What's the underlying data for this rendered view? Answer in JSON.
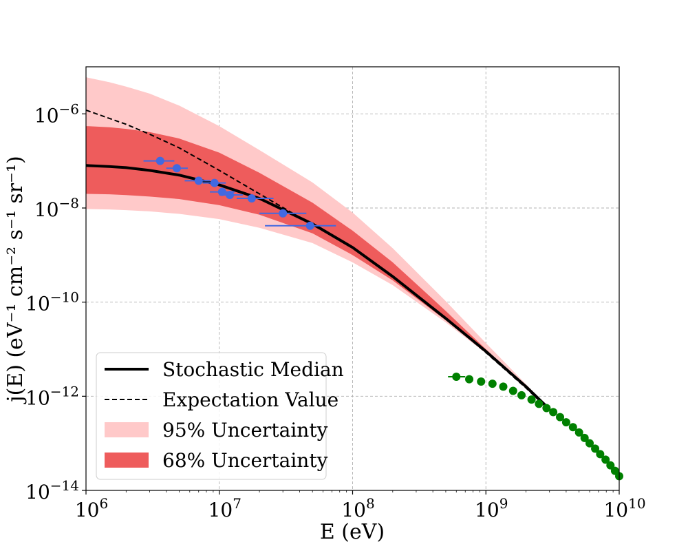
{
  "chart_data": {
    "type": "line",
    "title": "",
    "xlabel": "E (eV)",
    "ylabel": "j(E) (eV⁻¹ cm⁻² s⁻¹ sr⁻¹)",
    "xscale": "log",
    "yscale": "log",
    "xlim": [
      1000000.0,
      10000000000.0
    ],
    "ylim": [
      1e-14,
      1e-05
    ],
    "grid": true,
    "legend_position": "lower-left",
    "x_ticks": [
      {
        "value": 1000000.0,
        "label": "10^6",
        "base": "10",
        "exp": "6"
      },
      {
        "value": 10000000.0,
        "label": "10^7",
        "base": "10",
        "exp": "7"
      },
      {
        "value": 100000000.0,
        "label": "10^8",
        "base": "10",
        "exp": "8"
      },
      {
        "value": 1000000000.0,
        "label": "10^9",
        "base": "10",
        "exp": "9"
      },
      {
        "value": 10000000000.0,
        "label": "10^10",
        "base": "10",
        "exp": "10"
      }
    ],
    "y_ticks": [
      {
        "value": 1e-14,
        "label": "10^-14",
        "base": "10",
        "exp": "−14"
      },
      {
        "value": 1e-12,
        "label": "10^-12",
        "base": "10",
        "exp": "−12"
      },
      {
        "value": 1e-10,
        "label": "10^-10",
        "base": "10",
        "exp": "−10"
      },
      {
        "value": 1e-08,
        "label": "10^-8",
        "base": "10",
        "exp": "−8"
      },
      {
        "value": 1e-06,
        "label": "10^-6",
        "base": "10",
        "exp": "−6"
      }
    ],
    "series": [
      {
        "name": "95% Uncertainty",
        "kind": "band",
        "color": "#ffc9c9",
        "x": [
          1000000.0,
          1500000.0,
          2000000.0,
          3000000.0,
          5000000.0,
          10000000.0,
          20000000.0,
          50000000.0,
          100000000.0,
          200000000.0,
          500000000.0,
          1000000000.0,
          2000000000.0,
          3000000000.0
        ],
        "upper": [
          6e-06,
          4.7e-06,
          3.8e-06,
          2.7e-06,
          1.5e-06,
          5.5e-07,
          1.7e-07,
          3.5e-08,
          8e-09,
          1.4e-09,
          1.05e-10,
          1.35e-11,
          1.8e-12,
          5.5e-13
        ],
        "lower": [
          9.5e-09,
          9.3e-09,
          9e-09,
          8.5e-09,
          7.5e-09,
          5.8e-09,
          3.8e-09,
          1.8e-09,
          7e-10,
          2.3e-10,
          3.7e-11,
          8.2e-12,
          1.45e-12,
          4.7e-13
        ]
      },
      {
        "name": "68% Uncertainty",
        "kind": "band",
        "color": "#ee5c5c",
        "x": [
          1000000.0,
          1500000.0,
          2000000.0,
          3000000.0,
          5000000.0,
          10000000.0,
          20000000.0,
          50000000.0,
          100000000.0,
          200000000.0,
          500000000.0,
          1000000000.0,
          2000000000.0,
          3000000000.0
        ],
        "upper": [
          5.5e-07,
          5.2e-07,
          4.8e-07,
          4.1e-07,
          3e-07,
          1.5e-07,
          5.6e-08,
          1.3e-08,
          3.3e-09,
          7e-10,
          6.5e-11,
          1e-11,
          1.6e-12,
          5.2e-13
        ],
        "lower": [
          2e-08,
          1.95e-08,
          1.88e-08,
          1.75e-08,
          1.55e-08,
          1.15e-08,
          7.2e-09,
          2.9e-09,
          1e-09,
          2.9e-10,
          4.1e-11,
          8.5e-12,
          1.5e-12,
          4.9e-13
        ]
      },
      {
        "name": "Expectation Value",
        "kind": "line",
        "style": "dashed",
        "color": "#000000",
        "x": [
          1000000.0,
          1500000.0,
          2000000.0,
          3000000.0,
          5000000.0,
          10000000.0,
          20000000.0,
          50000000.0,
          100000000.0,
          200000000.0,
          500000000.0,
          1000000000.0,
          2000000000.0,
          3000000000.0
        ],
        "y": [
          1.2e-06,
          8e-07,
          6e-07,
          3.7e-07,
          1.9e-07,
          6.3e-08,
          2e-08,
          4.4e-09,
          1.45e-09,
          3.6e-10,
          4.5e-11,
          8.5e-12,
          1.5e-12,
          5e-13
        ]
      },
      {
        "name": "Stochastic Median",
        "kind": "line",
        "style": "solid",
        "color": "#000000",
        "x": [
          1000000.0,
          1500000.0,
          2000000.0,
          3000000.0,
          5000000.0,
          10000000.0,
          20000000.0,
          50000000.0,
          100000000.0,
          200000000.0,
          500000000.0,
          1000000000.0,
          2000000000.0,
          3000000000.0
        ],
        "y": [
          8e-08,
          7.6e-08,
          7.2e-08,
          6.3e-08,
          5e-08,
          3.1e-08,
          1.6e-08,
          4.6e-09,
          1.45e-09,
          3.5e-10,
          4.5e-11,
          9e-12,
          1.6e-12,
          5.3e-13
        ]
      },
      {
        "name": "Blue data points",
        "kind": "points",
        "color": "#4169e1",
        "points": [
          {
            "x": 3600000.0,
            "y": 1e-07,
            "xerr": [
              2700000.0,
              4600000.0
            ]
          },
          {
            "x": 4800000.0,
            "y": 7e-08,
            "xerr": [
              4000000.0,
              5800000.0
            ]
          },
          {
            "x": 7000000.0,
            "y": 3.8e-08,
            "xerr": [
              5500000.0,
              8500000.0
            ]
          },
          {
            "x": 9200000.0,
            "y": 3.4e-08,
            "xerr": [
              7500000.0,
              11200000.0
            ]
          },
          {
            "x": 10500000.0,
            "y": 2.2e-08,
            "xerr": [
              8500000.0,
              13000000.0
            ]
          },
          {
            "x": 12000000.0,
            "y": 1.9e-08,
            "xerr": [
              10000000.0,
              15000000.0
            ]
          },
          {
            "x": 17500000.0,
            "y": 1.6e-08,
            "xerr": [
              13500000.0,
              25500000.0
            ]
          },
          {
            "x": 30000000.0,
            "y": 7.7e-09,
            "xerr": [
              20000000.0,
              45000000.0
            ]
          },
          {
            "x": 48000000.0,
            "y": 4.2e-09,
            "xerr": [
              22000000.0,
              75000000.0
            ]
          }
        ]
      },
      {
        "name": "Green data points",
        "kind": "points",
        "color": "#008000",
        "points": [
          {
            "x": 600000000.0,
            "y": 2.6e-12,
            "xerr": [
              520000000.0,
              700000000.0
            ]
          },
          {
            "x": 750000000.0,
            "y": 2.3e-12
          },
          {
            "x": 920000000.0,
            "y": 2.05e-12
          },
          {
            "x": 1120000000.0,
            "y": 1.85e-12
          },
          {
            "x": 1350000000.0,
            "y": 1.6e-12
          },
          {
            "x": 1600000000.0,
            "y": 1.3e-12
          },
          {
            "x": 1850000000.0,
            "y": 1.05e-12
          },
          {
            "x": 2200000000.0,
            "y": 8.5e-13
          },
          {
            "x": 2500000000.0,
            "y": 6.9e-13
          },
          {
            "x": 2850000000.0,
            "y": 5.6e-13
          },
          {
            "x": 3200000000.0,
            "y": 4.6e-13
          },
          {
            "x": 3600000000.0,
            "y": 3.6e-13
          },
          {
            "x": 4000000000.0,
            "y": 2.8e-13
          },
          {
            "x": 4500000000.0,
            "y": 2.2e-13
          },
          {
            "x": 5000000000.0,
            "y": 1.7e-13
          },
          {
            "x": 5500000000.0,
            "y": 1.3e-13
          },
          {
            "x": 6000000000.0,
            "y": 1e-13
          },
          {
            "x": 6600000000.0,
            "y": 7.7e-14
          },
          {
            "x": 7200000000.0,
            "y": 5.9e-14
          },
          {
            "x": 7900000000.0,
            "y": 4.5e-14
          },
          {
            "x": 8600000000.0,
            "y": 3.4e-14
          },
          {
            "x": 9300000000.0,
            "y": 2.6e-14
          },
          {
            "x": 10000000000.0,
            "y": 2e-14
          }
        ]
      }
    ],
    "legend": [
      {
        "label": "Stochastic Median",
        "kind": "solid-line",
        "color": "#000000"
      },
      {
        "label": "Expectation Value",
        "kind": "dashed-line",
        "color": "#000000"
      },
      {
        "label": "95% Uncertainty",
        "kind": "patch",
        "color": "#ffc9c9"
      },
      {
        "label": "68% Uncertainty",
        "kind": "patch",
        "color": "#ee5c5c"
      }
    ]
  }
}
